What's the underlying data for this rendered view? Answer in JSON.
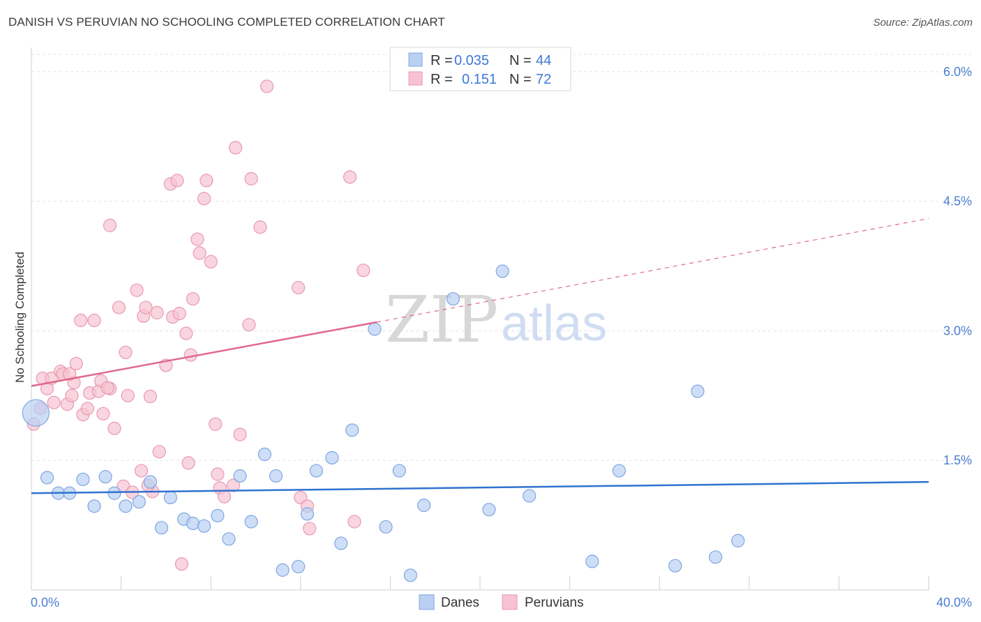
{
  "title": "DANISH VS PERUVIAN NO SCHOOLING COMPLETED CORRELATION CHART",
  "source": "Source: ZipAtlas.com",
  "colors": {
    "danes_fill": "#b9d0f3",
    "danes_stroke": "#7fa6e0",
    "danes_line": "#2f72d0",
    "peruvians_fill": "#f7c3d2",
    "peruvians_stroke": "#e899b2",
    "peruvians_line": "#e0688f",
    "tick_label": "#4a7fd0",
    "grid": "#e3e3e3"
  },
  "legend": {
    "rows": [
      {
        "r_label": "R =",
        "r_value": "0.035",
        "n_label": "N =",
        "n_value": "44"
      },
      {
        "r_label": "R =",
        "r_value": "0.151",
        "n_label": "N =",
        "n_value": "72"
      }
    ]
  },
  "watermark": {
    "zip": "ZIP",
    "atlas": "atlas"
  },
  "chart_data": {
    "type": "scatter",
    "title": "DANISH VS PERUVIAN NO SCHOOLING COMPLETED CORRELATION CHART",
    "xlabel": "",
    "ylabel": "No Schooling Completed",
    "xlim": [
      0,
      40
    ],
    "ylim": [
      0,
      6.2
    ],
    "x_tick_labels": [
      "0.0%",
      "40.0%"
    ],
    "y_ticks": [
      1.5,
      3.0,
      4.5,
      6.0
    ],
    "y_tick_labels": [
      "1.5%",
      "3.0%",
      "4.5%",
      "6.0%"
    ],
    "grid": true,
    "legend_position": "bottom-center",
    "series": [
      {
        "name": "Danes",
        "color": "#b9d0f3",
        "trend": {
          "x": [
            0,
            40
          ],
          "y": [
            1.12,
            1.25
          ]
        },
        "points": [
          [
            0.2,
            2.05
          ],
          [
            0.7,
            1.3
          ],
          [
            1.2,
            1.12
          ],
          [
            1.7,
            1.12
          ],
          [
            2.3,
            1.28
          ],
          [
            2.8,
            0.97
          ],
          [
            3.3,
            1.31
          ],
          [
            3.7,
            1.12
          ],
          [
            4.2,
            0.97
          ],
          [
            4.8,
            1.02
          ],
          [
            5.3,
            1.25
          ],
          [
            5.8,
            0.72
          ],
          [
            6.2,
            1.07
          ],
          [
            6.8,
            0.82
          ],
          [
            7.2,
            0.77
          ],
          [
            7.7,
            0.74
          ],
          [
            8.3,
            0.86
          ],
          [
            8.8,
            0.59
          ],
          [
            9.3,
            1.32
          ],
          [
            9.8,
            0.79
          ],
          [
            10.4,
            1.57
          ],
          [
            10.9,
            1.32
          ],
          [
            11.2,
            0.23
          ],
          [
            11.9,
            0.27
          ],
          [
            12.3,
            0.88
          ],
          [
            12.7,
            1.38
          ],
          [
            13.4,
            1.53
          ],
          [
            13.8,
            0.54
          ],
          [
            14.3,
            1.85
          ],
          [
            15.3,
            3.02
          ],
          [
            15.8,
            0.73
          ],
          [
            16.4,
            1.38
          ],
          [
            16.9,
            0.17
          ],
          [
            17.5,
            0.98
          ],
          [
            18.8,
            3.37
          ],
          [
            20.4,
            0.93
          ],
          [
            21.0,
            3.69
          ],
          [
            22.2,
            1.09
          ],
          [
            25.0,
            0.33
          ],
          [
            26.2,
            1.38
          ],
          [
            28.7,
            0.28
          ],
          [
            29.7,
            2.3
          ],
          [
            30.5,
            0.38
          ],
          [
            31.5,
            0.57
          ]
        ]
      },
      {
        "name": "Peruvians",
        "color": "#f7c3d2",
        "trend": {
          "x": [
            0,
            15.4
          ],
          "y": [
            2.36,
            3.1
          ]
        },
        "trend_extended": {
          "x": [
            15.4,
            40
          ],
          "y": [
            3.1,
            4.3
          ]
        },
        "points": [
          [
            0.1,
            1.92
          ],
          [
            0.4,
            2.1
          ],
          [
            0.5,
            2.45
          ],
          [
            0.7,
            2.33
          ],
          [
            0.9,
            2.45
          ],
          [
            1.0,
            2.17
          ],
          [
            1.3,
            2.53
          ],
          [
            1.4,
            2.5
          ],
          [
            1.6,
            2.15
          ],
          [
            1.8,
            2.25
          ],
          [
            1.9,
            2.4
          ],
          [
            2.0,
            2.62
          ],
          [
            2.2,
            3.12
          ],
          [
            2.3,
            2.03
          ],
          [
            2.5,
            2.1
          ],
          [
            2.6,
            2.28
          ],
          [
            2.8,
            3.12
          ],
          [
            3.0,
            2.3
          ],
          [
            3.1,
            2.42
          ],
          [
            3.2,
            2.04
          ],
          [
            3.5,
            2.33
          ],
          [
            3.5,
            4.22
          ],
          [
            3.7,
            1.87
          ],
          [
            3.9,
            3.27
          ],
          [
            4.1,
            1.2
          ],
          [
            4.2,
            2.75
          ],
          [
            4.3,
            2.25
          ],
          [
            4.5,
            1.13
          ],
          [
            4.7,
            3.47
          ],
          [
            4.9,
            1.38
          ],
          [
            5.0,
            3.17
          ],
          [
            5.1,
            3.27
          ],
          [
            5.3,
            2.24
          ],
          [
            5.4,
            1.14
          ],
          [
            5.6,
            3.21
          ],
          [
            5.7,
            1.6
          ],
          [
            6.0,
            2.6
          ],
          [
            6.2,
            4.7
          ],
          [
            6.3,
            3.16
          ],
          [
            6.5,
            4.74
          ],
          [
            6.6,
            3.2
          ],
          [
            6.7,
            0.3
          ],
          [
            6.9,
            2.97
          ],
          [
            7.0,
            1.47
          ],
          [
            7.1,
            2.72
          ],
          [
            7.2,
            3.37
          ],
          [
            7.4,
            4.06
          ],
          [
            7.5,
            3.9
          ],
          [
            7.7,
            4.53
          ],
          [
            7.8,
            4.74
          ],
          [
            8.0,
            3.8
          ],
          [
            8.2,
            1.92
          ],
          [
            8.3,
            1.34
          ],
          [
            8.4,
            1.18
          ],
          [
            8.6,
            1.08
          ],
          [
            9.1,
            5.12
          ],
          [
            9.3,
            1.8
          ],
          [
            9.7,
            3.07
          ],
          [
            9.8,
            4.76
          ],
          [
            10.2,
            4.2
          ],
          [
            10.5,
            5.83
          ],
          [
            11.9,
            3.5
          ],
          [
            12.0,
            1.07
          ],
          [
            12.3,
            0.97
          ],
          [
            12.4,
            0.71
          ],
          [
            14.2,
            4.78
          ],
          [
            14.4,
            0.79
          ],
          [
            14.8,
            3.7
          ],
          [
            9.0,
            1.21
          ],
          [
            5.2,
            1.21
          ],
          [
            3.4,
            2.34
          ],
          [
            1.7,
            2.5
          ]
        ]
      }
    ]
  },
  "bottom_legend": [
    "Danes",
    "Peruvians"
  ]
}
